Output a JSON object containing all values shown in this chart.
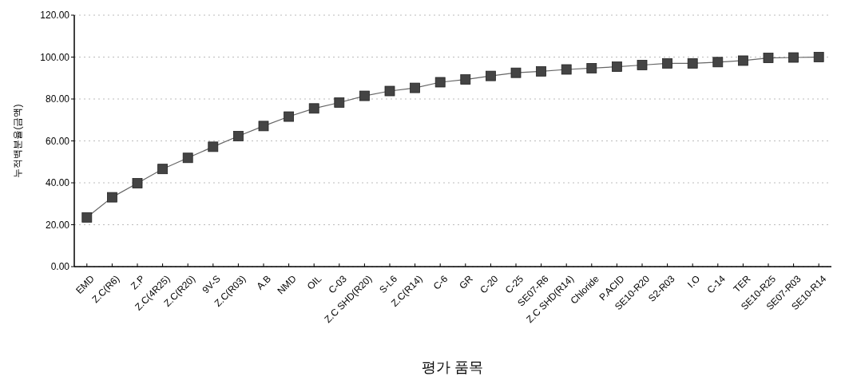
{
  "chart_data": {
    "type": "line",
    "xlabel": "평가 품목",
    "ylabel": "누적백분율(금액)",
    "categories": [
      "EMD",
      "Z.C(R6)",
      "Z.P",
      "Z.C(4R25)",
      "Z.C(R20)",
      "9V-S",
      "Z.C(R03)",
      "A.B",
      "NMD",
      "OIL",
      "C-03",
      "Z.C SHD(R20)",
      "S-L6",
      "Z.C(R14)",
      "C-6",
      "GR",
      "C-20",
      "C-25",
      "SE07-R6",
      "Z.C SHD(R14)",
      "Chloride",
      "P.ACID",
      "SE10-R20",
      "S2-R03",
      "I.O",
      "C-14",
      "TER",
      "SE10-R25",
      "SE07-R03",
      "SE10-R14"
    ],
    "series": [
      {
        "color": "#444444",
        "values": [
          23.5,
          33.1,
          39.8,
          46.6,
          51.9,
          57.2,
          62.3,
          67.1,
          71.6,
          75.5,
          78.3,
          81.5,
          83.8,
          85.3,
          88.0,
          89.3,
          91.0,
          92.5,
          93.2,
          94.1,
          94.7,
          95.4,
          96.2,
          97.0,
          97.0,
          97.6,
          98.3,
          99.6,
          99.8,
          100
        ]
      }
    ],
    "ylim": [
      0,
      120
    ],
    "yticks": [
      {
        "value": 0,
        "label": "0.00"
      },
      {
        "value": 20,
        "label": "20.00"
      },
      {
        "value": 40,
        "label": "40.00"
      },
      {
        "value": 60,
        "label": "60.00"
      },
      {
        "value": 80,
        "label": "80.00"
      },
      {
        "value": 100,
        "label": "100.00"
      },
      {
        "value": 120,
        "label": "120.00"
      }
    ],
    "grid": "y",
    "marker": "square",
    "line_style": "solid"
  }
}
